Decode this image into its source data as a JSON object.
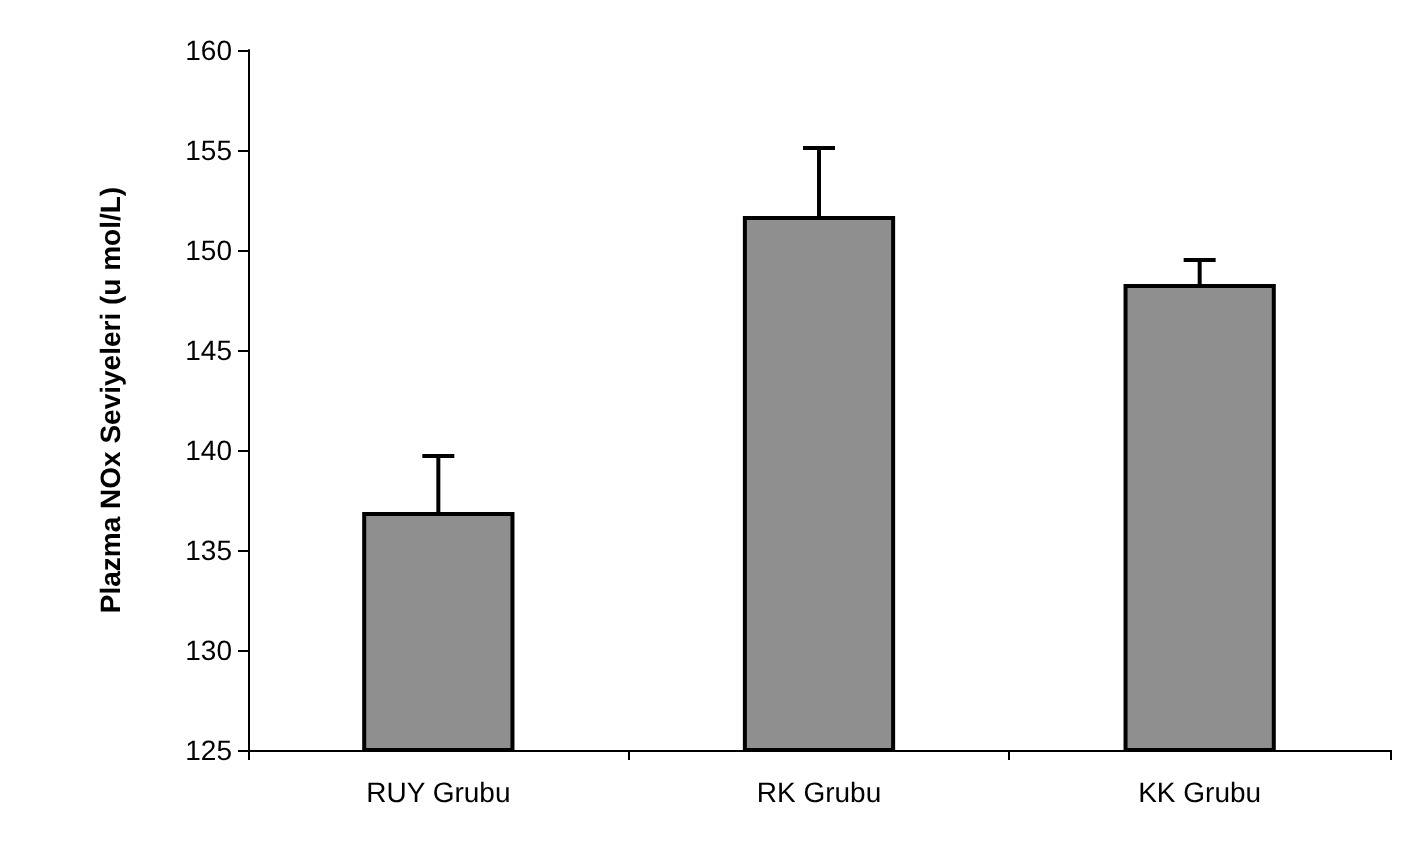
{
  "chart_data": {
    "type": "bar",
    "ylabel": "Plazma NOx Seviyeleri (u mol/L)",
    "categories": [
      "RUY Grubu",
      "RK Grubu",
      "KK Grubu"
    ],
    "values": [
      136.9,
      151.7,
      148.3
    ],
    "errors": [
      [
        136.9,
        139.7
      ],
      [
        151.7,
        155.1
      ],
      [
        148.3,
        149.5
      ]
    ],
    "color": "#8f8f8f",
    "ylim": [
      125,
      160
    ],
    "yticks": [
      125,
      130,
      135,
      140,
      145,
      150,
      155,
      160
    ],
    "grid": false
  }
}
